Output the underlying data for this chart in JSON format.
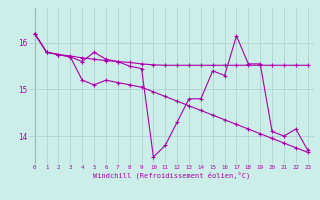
{
  "xlabel": "Windchill (Refroidissement éolien,°C)",
  "background_color": "#cceee8",
  "line_color": "#aa00aa",
  "grid_color": "#aacccc",
  "xlim": [
    -0.5,
    23.5
  ],
  "ylim": [
    13.4,
    16.75
  ],
  "yticks": [
    14,
    15,
    16
  ],
  "xticks": [
    0,
    1,
    2,
    3,
    4,
    5,
    6,
    7,
    8,
    9,
    10,
    11,
    12,
    13,
    14,
    15,
    16,
    17,
    18,
    19,
    20,
    21,
    22,
    23
  ],
  "series1": [
    16.2,
    15.8,
    15.75,
    15.7,
    15.6,
    15.8,
    15.65,
    15.6,
    15.5,
    15.45,
    13.55,
    13.8,
    14.3,
    14.8,
    14.8,
    15.4,
    15.3,
    16.15,
    15.55,
    15.55,
    14.1,
    14.0,
    14.15,
    13.7
  ],
  "series2": [
    16.2,
    15.8,
    15.75,
    15.72,
    15.68,
    15.65,
    15.62,
    15.6,
    15.58,
    15.55,
    15.53,
    15.52,
    15.52,
    15.52,
    15.52,
    15.52,
    15.52,
    15.52,
    15.52,
    15.52,
    15.52,
    15.52,
    15.52,
    15.52
  ],
  "series3": [
    16.2,
    15.8,
    15.75,
    15.7,
    15.2,
    15.1,
    15.2,
    15.15,
    15.1,
    15.05,
    14.95,
    14.85,
    14.75,
    14.65,
    14.55,
    14.45,
    14.35,
    14.25,
    14.15,
    14.05,
    13.95,
    13.85,
    13.75,
    13.65
  ]
}
